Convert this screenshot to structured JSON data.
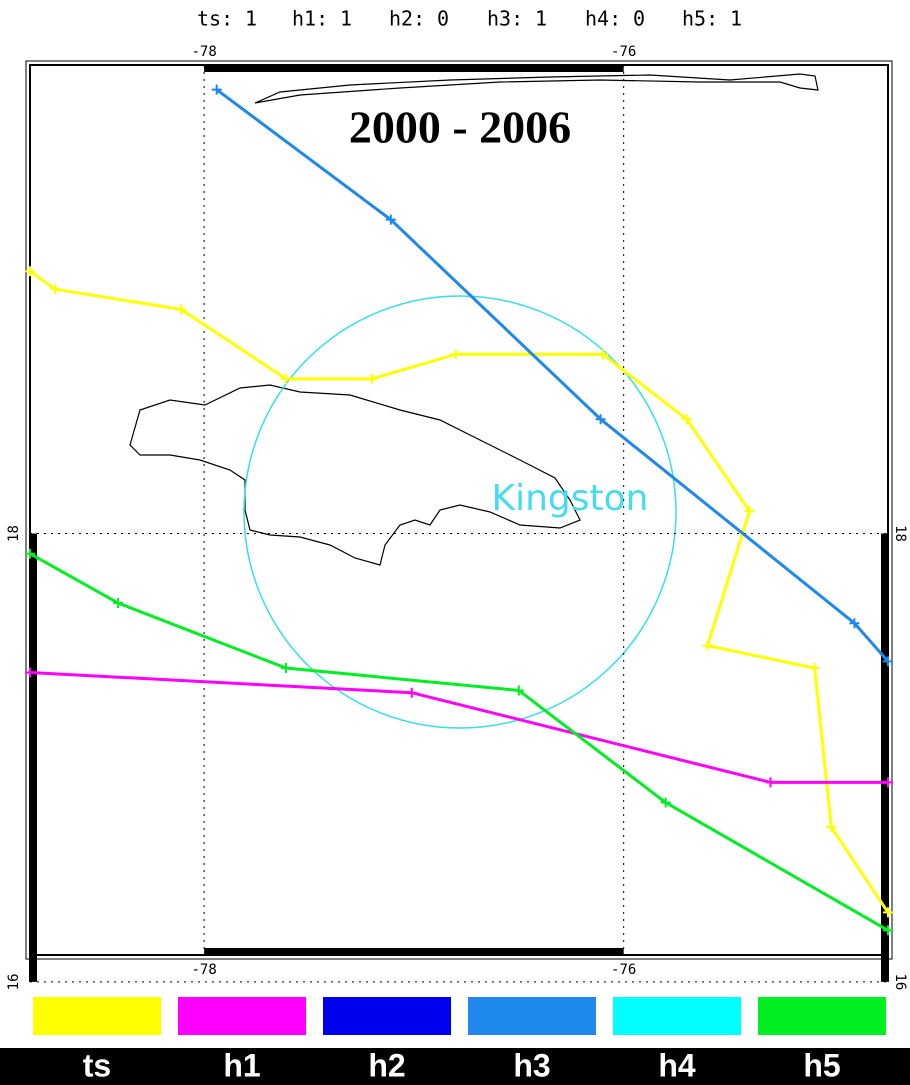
{
  "header": [
    {
      "label": "ts:",
      "count": 1
    },
    {
      "label": "h1:",
      "count": 1
    },
    {
      "label": "h2:",
      "count": 0
    },
    {
      "label": "h3:",
      "count": 1
    },
    {
      "label": "h4:",
      "count": 0
    },
    {
      "label": "h5:",
      "count": 1
    }
  ],
  "map": {
    "title": "2000 - 2006",
    "place_label": "Kingston",
    "xlim": [
      -78.83,
      -74.74
    ],
    "ylim": [
      16.12,
      20.09
    ],
    "xticks": [
      -78,
      -76
    ],
    "yticks": [
      18,
      16
    ],
    "tracks": [
      {
        "color": "#ffff00",
        "lon": [
          -78.83,
          -78.71,
          -78.11,
          -77.61,
          -77.2,
          -76.8,
          -76.1,
          -75.7,
          -75.4,
          -75.6,
          -75.09,
          -75.01,
          -74.74
        ],
        "lat": [
          19.17,
          19.09,
          19.0,
          18.69,
          18.69,
          18.8,
          18.8,
          18.51,
          18.1,
          17.5,
          17.4,
          16.69,
          16.31
        ]
      },
      {
        "color": "#1e88ee",
        "lon": [
          -77.94,
          -77.11,
          -76.11,
          -74.9,
          -74.74
        ],
        "lat": [
          19.98,
          19.4,
          18.51,
          17.6,
          17.43
        ]
      },
      {
        "color": "#ff00ff",
        "lon": [
          -78.83,
          -77.01,
          -75.3,
          -74.74
        ],
        "lat": [
          17.38,
          17.29,
          16.89,
          16.89
        ]
      },
      {
        "color": "#00ee22",
        "lon": [
          -78.83,
          -78.41,
          -77.61,
          -76.5,
          -75.8,
          -74.74
        ],
        "lat": [
          17.91,
          17.69,
          17.4,
          17.3,
          16.8,
          16.23
        ]
      }
    ]
  },
  "legend": [
    {
      "label": "ts",
      "color": "#ffff00"
    },
    {
      "label": "h1",
      "color": "#ff00ff"
    },
    {
      "label": "h2",
      "color": "#0000ee"
    },
    {
      "label": "h3",
      "color": "#1e88ee"
    },
    {
      "label": "h4",
      "color": "#00ffff"
    },
    {
      "label": "h5",
      "color": "#00ee22"
    }
  ]
}
